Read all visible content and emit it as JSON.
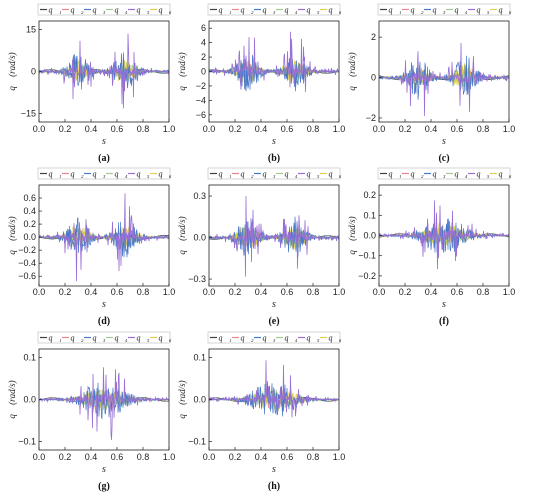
{
  "figure": {
    "legend_labels": [
      "q⃛₁",
      "q⃛₂",
      "q⃛₃",
      "q⃛₄",
      "q⃛₅",
      "q⃛₆"
    ],
    "series_colors": [
      "#404040",
      "#e8868f",
      "#4a78c8",
      "#a8c88a",
      "#9a6fd6",
      "#e0d050"
    ]
  },
  "chart_data": [
    {
      "type": "line",
      "caption": "(a)",
      "xlabel": "s",
      "ylabel": "q⃛ (rad/s)",
      "xlim": [
        0,
        1
      ],
      "ylim": [
        -18,
        18
      ],
      "xticks": [
        "0.0",
        "0.2",
        "0.4",
        "0.6",
        "0.8",
        "1.0"
      ],
      "yticks": [
        15,
        0,
        -15
      ],
      "ytick_labels": [
        "15",
        "0",
        "−15"
      ],
      "legend": [
        "q⃛₁",
        "q⃛₂",
        "q⃛₃",
        "q⃛₄",
        "q⃛₅",
        "q⃛₆"
      ],
      "peaks": [
        {
          "s": 0.3,
          "value": 10
        },
        {
          "s": 0.35,
          "value": -12
        },
        {
          "s": 0.65,
          "value": 13
        },
        {
          "s": 0.72,
          "value": -16
        }
      ]
    },
    {
      "type": "line",
      "caption": "(b)",
      "xlabel": "s",
      "ylabel": "q⃛ (rad/s)",
      "xlim": [
        0,
        1
      ],
      "ylim": [
        -7,
        7
      ],
      "xticks": [
        "0.0",
        "0.2",
        "0.4",
        "0.6",
        "0.8",
        "1.0"
      ],
      "yticks": [
        6,
        4,
        2,
        0,
        -2,
        -4,
        -6
      ],
      "ytick_labels": [
        "6",
        "4",
        "2",
        "0",
        "−2",
        "−4",
        "−6"
      ],
      "legend": [
        "q⃛₁",
        "q⃛₂",
        "q⃛₃",
        "q⃛₄",
        "q⃛₅",
        "q⃛₆"
      ],
      "peaks": [
        {
          "s": 0.3,
          "value": 4
        },
        {
          "s": 0.7,
          "value": 5.5
        },
        {
          "s": 0.65,
          "value": -5
        }
      ]
    },
    {
      "type": "line",
      "caption": "(c)",
      "xlabel": "s",
      "ylabel": "q⃛ (rad/s)",
      "xlim": [
        0,
        1
      ],
      "ylim": [
        -2.2,
        2.8
      ],
      "xticks": [
        "0.0",
        "0.2",
        "0.4",
        "0.6",
        "0.8",
        "1.0"
      ],
      "yticks": [
        2,
        0,
        -2
      ],
      "ytick_labels": [
        "2",
        "0",
        "−2"
      ],
      "legend": [
        "q⃛₁",
        "q⃛₂",
        "q⃛₃",
        "q⃛₄",
        "q⃛₅",
        "q⃛₆"
      ],
      "peaks": [
        {
          "s": 0.3,
          "value": 2
        },
        {
          "s": 0.68,
          "value": 2.2
        },
        {
          "s": 0.3,
          "value": -1.8
        },
        {
          "s": 0.6,
          "value": -1.8
        }
      ]
    },
    {
      "type": "line",
      "caption": "(d)",
      "xlabel": "s",
      "ylabel": "q⃛ (rad/s)",
      "xlim": [
        0,
        1
      ],
      "ylim": [
        -0.75,
        0.8
      ],
      "xticks": [
        "0.0",
        "0.2",
        "0.4",
        "0.6",
        "0.8",
        "1.0"
      ],
      "yticks": [
        0.6,
        0.4,
        0.2,
        0,
        -0.2,
        -0.4,
        -0.6
      ],
      "ytick_labels": [
        "0.6",
        "0.4",
        "0.2",
        "0.0",
        "−0.2",
        "−0.4",
        "−0.6"
      ],
      "legend": [
        "q⃛₁",
        "q⃛₂",
        "q⃛₃",
        "q⃛₄",
        "q⃛₅",
        "q⃛₆"
      ],
      "peaks": [
        {
          "s": 0.35,
          "value": 0.55
        },
        {
          "s": 0.65,
          "value": 0.65
        },
        {
          "s": 0.3,
          "value": -0.5
        },
        {
          "s": 0.6,
          "value": -0.55
        }
      ]
    },
    {
      "type": "line",
      "caption": "(e)",
      "xlabel": "s",
      "ylabel": "q⃛ (rad/s)",
      "xlim": [
        0,
        1
      ],
      "ylim": [
        -0.35,
        0.38
      ],
      "xticks": [
        "0.0",
        "0.2",
        "0.4",
        "0.6",
        "0.8",
        "1.0"
      ],
      "yticks": [
        0.3,
        0,
        -0.3
      ],
      "ytick_labels": [
        "0.3",
        "0.0",
        "−0.3"
      ],
      "legend": [
        "q⃛₁",
        "q⃛₂",
        "q⃛₃",
        "q⃛₄",
        "q⃛₅",
        "q⃛₆"
      ],
      "peaks": [
        {
          "s": 0.35,
          "value": 0.3
        },
        {
          "s": 0.6,
          "value": 0.25
        },
        {
          "s": 0.35,
          "value": -0.22
        },
        {
          "s": 0.7,
          "value": -0.25
        }
      ]
    },
    {
      "type": "line",
      "caption": "(f)",
      "xlabel": "s",
      "ylabel": "q⃛ (rad/s)",
      "xlim": [
        0,
        1
      ],
      "ylim": [
        -0.25,
        0.25
      ],
      "xticks": [
        "0.0",
        "0.2",
        "0.4",
        "0.6",
        "0.8",
        "1.0"
      ],
      "yticks": [
        0.2,
        0.1,
        0,
        -0.1,
        -0.2
      ],
      "ytick_labels": [
        "0.2",
        "0.1",
        "0.0",
        "−0.1",
        "−0.2"
      ],
      "legend": [
        "q⃛₁",
        "q⃛₂",
        "q⃛₃",
        "q⃛₄",
        "q⃛₅",
        "q⃛₆"
      ],
      "peaks": [
        {
          "s": 0.55,
          "value": 0.18
        },
        {
          "s": 0.45,
          "value": -0.18
        },
        {
          "s": 0.6,
          "value": -0.15
        }
      ]
    },
    {
      "type": "line",
      "caption": "(g)",
      "xlabel": "s",
      "ylabel": "q⃛ (rad/s)",
      "xlim": [
        0,
        1
      ],
      "ylim": [
        -0.12,
        0.12
      ],
      "xticks": [
        "0.0",
        "0.2",
        "0.4",
        "0.6",
        "0.8",
        "1.0"
      ],
      "yticks": [
        0.1,
        0,
        -0.1
      ],
      "ytick_labels": [
        "0.1",
        "0.0",
        "−0.1"
      ],
      "legend": [
        "q⃛₁",
        "q⃛₂",
        "q⃛₃",
        "q⃛₄",
        "q⃛₅",
        "q⃛₆"
      ],
      "peaks": [
        {
          "s": 0.5,
          "value": 0.08
        },
        {
          "s": 0.55,
          "value": -0.09
        },
        {
          "s": 0.85,
          "value": -0.1
        }
      ]
    },
    {
      "type": "line",
      "caption": "(h)",
      "xlabel": "s",
      "ylabel": "q⃛ (rad/s)",
      "xlim": [
        0,
        1
      ],
      "ylim": [
        -0.12,
        0.12
      ],
      "xticks": [
        "0.0",
        "0.2",
        "0.4",
        "0.6",
        "0.8",
        "1.0"
      ],
      "yticks": [
        0.1,
        0,
        -0.1
      ],
      "ytick_labels": [
        "0.1",
        "0.0",
        "−0.1"
      ],
      "legend": [
        "q⃛₁",
        "q⃛₂",
        "q⃛₃",
        "q⃛₄",
        "q⃛₅",
        "q⃛₆"
      ],
      "peaks": [
        {
          "s": 0.5,
          "value": 0.07
        },
        {
          "s": 0.5,
          "value": -0.05
        }
      ]
    }
  ]
}
